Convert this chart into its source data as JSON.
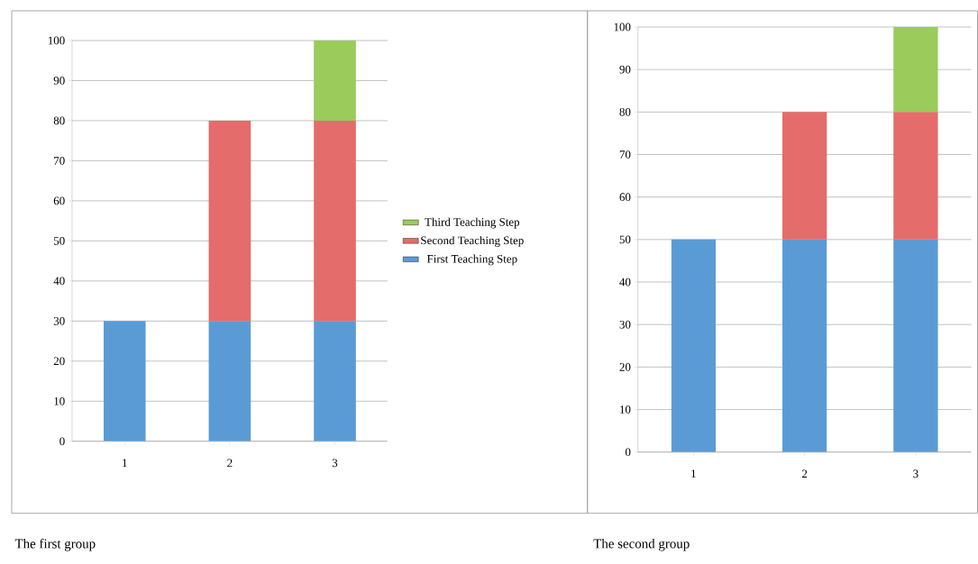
{
  "chart_data": [
    {
      "type": "bar",
      "stacked": true,
      "categories": [
        "1",
        "2",
        "3"
      ],
      "series": [
        {
          "name": "First Teaching Step",
          "color": "#5b9bd5",
          "values": [
            30,
            30,
            30
          ]
        },
        {
          "name": "Second Teaching Step",
          "color": "#e46c6a",
          "values": [
            null,
            50,
            50
          ]
        },
        {
          "name": "Third Teaching Step",
          "color": "#9bcb5a",
          "values": [
            null,
            null,
            20
          ]
        }
      ],
      "ylim": [
        0,
        100
      ],
      "yticks": [
        0,
        10,
        20,
        30,
        40,
        50,
        60,
        70,
        80,
        90,
        100
      ],
      "grid": "y",
      "legend": "right",
      "annotations": [
        "The first group"
      ]
    },
    {
      "type": "bar",
      "stacked": true,
      "categories": [
        "1",
        "2",
        "3"
      ],
      "series": [
        {
          "color": "#5b9bd5",
          "values": [
            50,
            50,
            50
          ]
        },
        {
          "color": "#e46c6a",
          "values": [
            null,
            30,
            30
          ]
        },
        {
          "color": "#9bcb5a",
          "values": [
            null,
            null,
            20
          ]
        }
      ],
      "ylim": [
        0,
        100
      ],
      "yticks": [
        0,
        10,
        20,
        30,
        40,
        50,
        60,
        70,
        80,
        90,
        100
      ],
      "grid": "y",
      "annotations": [
        "The second group"
      ]
    }
  ]
}
